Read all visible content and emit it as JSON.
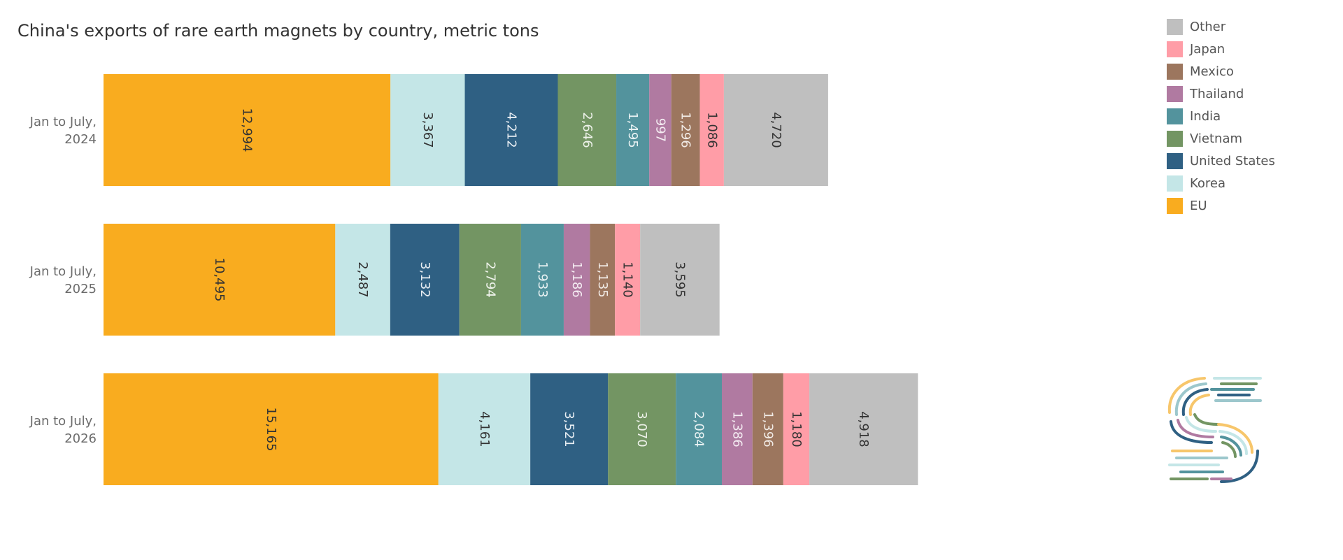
{
  "chart_data": {
    "type": "bar",
    "orientation": "horizontal",
    "stacked": true,
    "title": "China's exports of rare earth magnets by country, metric tons",
    "categories": [
      [
        "Jan to July,",
        "2024"
      ],
      [
        "Jan to July,",
        "2025"
      ],
      [
        "Jan to July,",
        "2026"
      ]
    ],
    "series": [
      {
        "name": "EU",
        "color": "#F9AC1F",
        "text_color": "#333333",
        "values": [
          12994,
          10495,
          15165
        ],
        "labels": [
          "12,994",
          "10,495",
          "15,165"
        ]
      },
      {
        "name": "Korea",
        "color": "#C4E6E7",
        "text_color": "#333333",
        "values": [
          3367,
          2487,
          4161
        ],
        "labels": [
          "3,367",
          "2,487",
          "4,161"
        ]
      },
      {
        "name": "United States",
        "color": "#2F6083",
        "text_color": "#e8eef3",
        "values": [
          4212,
          3132,
          3521
        ],
        "labels": [
          "4,212",
          "3,132",
          "3,521"
        ]
      },
      {
        "name": "Vietnam",
        "color": "#739563",
        "text_color": "#eef2ea",
        "values": [
          2646,
          2794,
          3070
        ],
        "labels": [
          "2,646",
          "2,794",
          "3,070"
        ]
      },
      {
        "name": "India",
        "color": "#53939D",
        "text_color": "#e9f2f3",
        "values": [
          1495,
          1933,
          2084
        ],
        "labels": [
          "1,495",
          "1,933",
          "2,084"
        ]
      },
      {
        "name": "Thailand",
        "color": "#B07AA1",
        "text_color": "#f4ecf2",
        "values": [
          997,
          1186,
          1386
        ],
        "labels": [
          "997",
          "1,186",
          "1,386"
        ]
      },
      {
        "name": "Mexico",
        "color": "#9C765E",
        "text_color": "#f1ebe6",
        "values": [
          1296,
          1135,
          1396
        ],
        "labels": [
          "1,296",
          "1,135",
          "1,396"
        ]
      },
      {
        "name": "Japan",
        "color": "#FF9DA7",
        "text_color": "#333333",
        "values": [
          1086,
          1140,
          1180
        ],
        "labels": [
          "1,086",
          "1,140",
          "1,180"
        ]
      },
      {
        "name": "Other",
        "color": "#BFBFBF",
        "text_color": "#333333",
        "values": [
          4720,
          3595,
          4918
        ],
        "labels": [
          "4,720",
          "3,595",
          "4,918"
        ]
      }
    ],
    "legend": {
      "placement": "top-right",
      "order": [
        "Other",
        "Japan",
        "Mexico",
        "Thailand",
        "India",
        "Vietnam",
        "United States",
        "Korea",
        "EU"
      ]
    },
    "grid": false
  }
}
